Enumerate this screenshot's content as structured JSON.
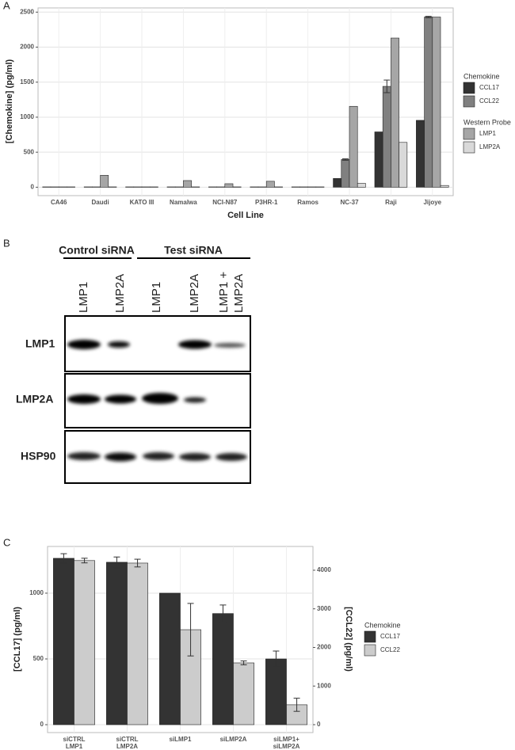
{
  "panel_labels": [
    "A",
    "B",
    "C"
  ],
  "chart_data": [
    {
      "type": "bar",
      "x_label": "Cell Line",
      "y_label": "[Chemokine] (pg/ml)",
      "categories": [
        "CA46",
        "Daudi",
        "KATO III",
        "Namalwa",
        "NCI-N87",
        "P3HR-1",
        "Ramos",
        "NC-37",
        "Raji",
        "Jijoye"
      ],
      "legend_groups": [
        {
          "title": "Chemokine",
          "series": [
            {
              "name": "CCL17",
              "color": "#333333",
              "values": [
                5,
                5,
                5,
                5,
                5,
                5,
                5,
                125,
                790,
                955
              ]
            },
            {
              "name": "CCL22",
              "color": "#808080",
              "values": [
                5,
                5,
                5,
                5,
                5,
                5,
                5,
                395,
                1440,
                2430
              ],
              "errors": [
                null,
                null,
                null,
                null,
                null,
                null,
                null,
                10,
                90,
                10
              ]
            }
          ]
        },
        {
          "title": "Western Probe",
          "series": [
            {
              "name": "LMP1",
              "color": "#a6a6a6",
              "values": [
                5,
                170,
                5,
                95,
                50,
                85,
                5,
                1155,
                2130,
                2430
              ]
            },
            {
              "name": "LMP2A",
              "color": "#d9d9d9",
              "values": [
                5,
                5,
                5,
                5,
                5,
                5,
                5,
                55,
                640,
                25
              ]
            }
          ]
        }
      ],
      "ylim": [
        -120,
        2560
      ],
      "yticks": [
        0,
        500,
        1000,
        1500,
        2000,
        2500
      ],
      "grid": true
    },
    {
      "type": "bar",
      "y_label": "[CCL17] (pg/ml)",
      "y2_label": "[CCL22] (pg/ml)",
      "categories": [
        [
          "siCTRL",
          "LMP1"
        ],
        [
          "siCTRL",
          "LMP2A"
        ],
        [
          "siLMP1"
        ],
        [
          "siLMP2A"
        ],
        [
          "siLMP1+",
          "siLMP2A"
        ]
      ],
      "legend_groups": [
        {
          "title": "Chemokine",
          "series": [
            {
              "name": "CCL17",
              "color": "#333333",
              "values": [
                1265,
                1235,
                1000,
                845,
                500
              ],
              "errors": [
                35,
                40,
                null,
                65,
                60
              ]
            },
            {
              "name": "CCL22",
              "color": "#cccccc",
              "axis": "y2",
              "values": [
                4250,
                4185,
                2460,
                1600,
                515
              ],
              "errors": [
                60,
                100,
                680,
                50,
                170
              ]
            }
          ]
        }
      ],
      "ylim": [
        -60,
        1355
      ],
      "yticks": [
        0,
        500,
        1000
      ],
      "y2lim": [
        -205,
        4615
      ],
      "y2ticks": [
        0,
        1000,
        2000,
        3000,
        4000
      ],
      "grid": true
    }
  ],
  "blot": {
    "groups": [
      "Control siRNA",
      "Test siRNA"
    ],
    "lanes": [
      [
        "LMP1"
      ],
      [
        "LMP2A"
      ],
      [
        "LMP1"
      ],
      [
        "LMP2A"
      ],
      [
        "LMP1 +",
        "LMP2A"
      ]
    ],
    "rows": [
      "LMP1",
      "LMP2A",
      "HSP90"
    ]
  }
}
